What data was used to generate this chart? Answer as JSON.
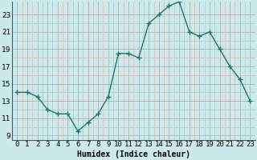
{
  "x": [
    0,
    1,
    2,
    3,
    4,
    5,
    6,
    7,
    8,
    9,
    10,
    11,
    12,
    13,
    14,
    15,
    16,
    17,
    18,
    19,
    20,
    21,
    22,
    23
  ],
  "y": [
    14,
    14,
    13.5,
    12,
    11.5,
    11.5,
    9.5,
    10.5,
    11.5,
    13.5,
    18.5,
    18.5,
    18,
    22,
    23,
    24,
    24.5,
    21,
    20.5,
    21,
    19,
    17,
    15.5,
    13
  ],
  "line_color": "#1a7a6a",
  "marker_color": "#1a7a6a",
  "bg_color": "#cceaea",
  "grid_color_major": "#aaaaaa",
  "grid_color_minor": "#dbbaba",
  "xlabel": "Humidex (Indice chaleur)",
  "xlabel_fontsize": 7,
  "ylabel_ticks": [
    9,
    11,
    13,
    15,
    17,
    19,
    21,
    23
  ],
  "xlim": [
    -0.5,
    23.5
  ],
  "ylim": [
    8.5,
    24.5
  ],
  "xtick_labels": [
    "0",
    "1",
    "2",
    "3",
    "4",
    "5",
    "6",
    "7",
    "8",
    "9",
    "10",
    "11",
    "12",
    "13",
    "14",
    "15",
    "16",
    "17",
    "18",
    "19",
    "20",
    "21",
    "22",
    "23"
  ],
  "tick_fontsize": 6.5,
  "line_width": 1.0,
  "marker_size": 2.5
}
